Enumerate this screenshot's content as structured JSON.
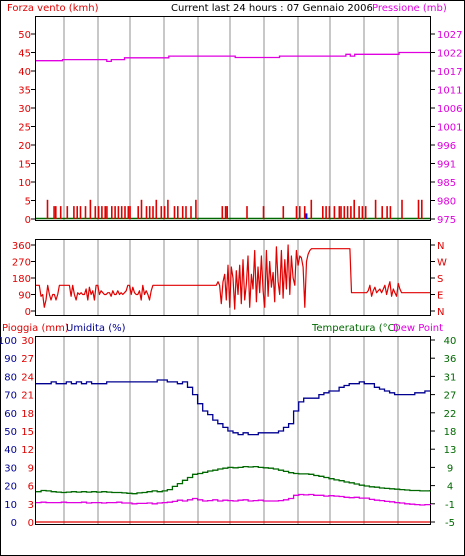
{
  "title": "Current last 24 hours : 07 Gennaio 2006",
  "colors": {
    "red": "#e00000",
    "magenta": "#e000e0",
    "navy": "#000090",
    "green": "#006800",
    "blue": "#0000ff",
    "grid": "#c8c8c8"
  },
  "chart_data": [
    {
      "type": "line",
      "id": "wind-pressure",
      "left_label": "Forza vento (kmh)",
      "right_label": "Pressione (mb)",
      "left_ticks": [
        "50",
        "45",
        "40",
        "35",
        "30",
        "25",
        "20",
        "15",
        "10",
        "5",
        "0"
      ],
      "right_ticks": [
        "1027",
        "1022",
        "1017",
        "1011",
        "1006",
        "1001",
        "996",
        "991",
        "985",
        "980",
        "975"
      ],
      "left_ylim": [
        0,
        50
      ],
      "right_ylim": [
        975,
        1027
      ],
      "series": [
        {
          "axis": "right",
          "color": "magenta",
          "values": [
            1019.5,
            1019.5,
            1019.5,
            1019.5,
            1019.5,
            1019.5,
            1019.8,
            1019.8,
            1019.8,
            1019.8,
            1019.8,
            1019.8,
            1019.8,
            1019.8,
            1019.8,
            1019.8,
            1019.3,
            1019.8,
            1019.8,
            1019.8,
            1020.3,
            1020.3,
            1020.3,
            1020.3,
            1020.3,
            1020.3,
            1020.3,
            1020.3,
            1020.3,
            1020.3,
            1020.8,
            1020.8,
            1020.8,
            1020.8,
            1020.8,
            1020.8,
            1020.8,
            1020.8,
            1020.8,
            1020.8,
            1020.8,
            1020.8,
            1020.8,
            1020.8,
            1020.8,
            1020.4,
            1020.4,
            1020.4,
            1020.4,
            1020.4,
            1020.4,
            1020.4,
            1020.4,
            1020.4,
            1020.4,
            1020.8,
            1020.8,
            1020.8,
            1020.8,
            1020.8,
            1020.8,
            1020.8,
            1020.8,
            1020.8,
            1020.8,
            1020.8,
            1020.8,
            1020.8,
            1020.8,
            1020.8,
            1021.3,
            1020.8,
            1021.3,
            1021.3,
            1021.3,
            1021.3,
            1021.3,
            1021.3,
            1021.3,
            1021.3,
            1021.3,
            1021.3,
            1021.8,
            1021.8,
            1021.8,
            1021.8,
            1021.8,
            1021.8,
            1021.8,
            1021.8
          ]
        }
      ],
      "wind_bars": [
        {
          "i": 7,
          "v": 5.2
        },
        {
          "i": 11,
          "v": 3.5
        },
        {
          "i": 12,
          "v": 3.5
        },
        {
          "i": 15,
          "v": 3.5
        },
        {
          "i": 19,
          "v": 3.5
        },
        {
          "i": 23,
          "v": 3.5
        },
        {
          "i": 25,
          "v": 3.5
        },
        {
          "i": 27,
          "v": 3.5
        },
        {
          "i": 30,
          "v": 3.5
        },
        {
          "i": 33,
          "v": 5.2
        },
        {
          "i": 36,
          "v": 3.5
        },
        {
          "i": 38,
          "v": 3.5
        },
        {
          "i": 40,
          "v": 3.5
        },
        {
          "i": 42,
          "v": 3.5
        },
        {
          "i": 43,
          "v": 3.5
        },
        {
          "i": 46,
          "v": 3.5
        },
        {
          "i": 48,
          "v": 3.5
        },
        {
          "i": 50,
          "v": 3.5
        },
        {
          "i": 52,
          "v": 3.5
        },
        {
          "i": 54,
          "v": 3.5
        },
        {
          "i": 56,
          "v": 3.5
        },
        {
          "i": 57,
          "v": 3.5
        },
        {
          "i": 62,
          "v": 3.5
        },
        {
          "i": 64,
          "v": 5.2
        },
        {
          "i": 67,
          "v": 3.5
        },
        {
          "i": 69,
          "v": 3.5
        },
        {
          "i": 71,
          "v": 3.5
        },
        {
          "i": 73,
          "v": 5.2
        },
        {
          "i": 76,
          "v": 3.5
        },
        {
          "i": 78,
          "v": 3.5
        },
        {
          "i": 80,
          "v": 5.2
        },
        {
          "i": 84,
          "v": 3.5
        },
        {
          "i": 86,
          "v": 3.5
        },
        {
          "i": 89,
          "v": 3.5
        },
        {
          "i": 91,
          "v": 3.5
        },
        {
          "i": 94,
          "v": 3.5
        },
        {
          "i": 97,
          "v": 5.2
        },
        {
          "i": 113,
          "v": 3.5
        },
        {
          "i": 115,
          "v": 3.5
        },
        {
          "i": 116,
          "v": 3.5
        },
        {
          "i": 128,
          "v": 3.5
        },
        {
          "i": 138,
          "v": 3.5
        },
        {
          "i": 150,
          "v": 3.5
        },
        {
          "i": 158,
          "v": 3.5
        },
        {
          "i": 160,
          "v": 3.5
        },
        {
          "i": 163,
          "v": 3.5
        },
        {
          "i": 167,
          "v": 5.2
        },
        {
          "i": 174,
          "v": 3.5
        },
        {
          "i": 176,
          "v": 3.5
        },
        {
          "i": 178,
          "v": 3.5
        },
        {
          "i": 181,
          "v": 3.5
        },
        {
          "i": 184,
          "v": 3.5
        },
        {
          "i": 185,
          "v": 3.5
        },
        {
          "i": 187,
          "v": 3.5
        },
        {
          "i": 189,
          "v": 3.5
        },
        {
          "i": 191,
          "v": 3.5
        },
        {
          "i": 193,
          "v": 5.2
        },
        {
          "i": 196,
          "v": 3.5
        },
        {
          "i": 198,
          "v": 3.5
        },
        {
          "i": 200,
          "v": 3.5
        },
        {
          "i": 206,
          "v": 5.2
        },
        {
          "i": 210,
          "v": 3.5
        },
        {
          "i": 213,
          "v": 3.5
        },
        {
          "i": 215,
          "v": 3.5
        },
        {
          "i": 222,
          "v": 5.2
        },
        {
          "i": 232,
          "v": 5.2
        },
        {
          "i": 234,
          "v": 5.2
        }
      ],
      "gust_bar": {
        "i": 164,
        "v": 1.5
      }
    },
    {
      "type": "line",
      "id": "wind-direction",
      "left_ticks": [
        "360",
        "270",
        "180",
        "90",
        "0"
      ],
      "right_ticks": [
        "N",
        "W",
        "S",
        "E",
        "N"
      ],
      "ylim": [
        0,
        360
      ],
      "series": [
        {
          "color": "red",
          "values": [
            140,
            140,
            140,
            80,
            90,
            20,
            60,
            140,
            90,
            60,
            90,
            90,
            60,
            90,
            140,
            140,
            140,
            140,
            140,
            140,
            140,
            80,
            140,
            90,
            60,
            100,
            90,
            100,
            90,
            90,
            120,
            60,
            130,
            90,
            110,
            60,
            140,
            140,
            90,
            110,
            100,
            90,
            90,
            100,
            100,
            80,
            110,
            90,
            90,
            110,
            90,
            100,
            90,
            100,
            110,
            140,
            140,
            90,
            130,
            100,
            90,
            90,
            110,
            60,
            140,
            90,
            110,
            90,
            60,
            110,
            140,
            140,
            140,
            140,
            140,
            140,
            140,
            140,
            140,
            140,
            140,
            140,
            140,
            140,
            140,
            140,
            140,
            140,
            140,
            140,
            140,
            140,
            140,
            140,
            140,
            140,
            140,
            140,
            140,
            140,
            140,
            140,
            140,
            140,
            140,
            140,
            140,
            140,
            140,
            160,
            140,
            40,
            160,
            200,
            60,
            250,
            20,
            240,
            180,
            10,
            220,
            90,
            250,
            40,
            280,
            60,
            150,
            300,
            20,
            200,
            120,
            330,
            50,
            240,
            100,
            300,
            110,
            20,
            330,
            80,
            270,
            130,
            210,
            50,
            350,
            160,
            90,
            330,
            70,
            280,
            120,
            360,
            90,
            300,
            180,
            140,
            330,
            250,
            300,
            290,
            240,
            20,
            270,
            310,
            330,
            340,
            340,
            340,
            340,
            340,
            340,
            340,
            340,
            340,
            340,
            340,
            340,
            340,
            340,
            340,
            340,
            340,
            340,
            340,
            340,
            340,
            340,
            340,
            340,
            100,
            100,
            100,
            100,
            100,
            100,
            100,
            100,
            100,
            100,
            110,
            140,
            80,
            110,
            130,
            100,
            110,
            120,
            100,
            120,
            140,
            90,
            130,
            160,
            80,
            120,
            100,
            80,
            150,
            120,
            100,
            100,
            100,
            100,
            100,
            100,
            100,
            100,
            100,
            100,
            100,
            100,
            100,
            100,
            100,
            100,
            100,
            100
          ]
        }
      ]
    },
    {
      "type": "line",
      "id": "rain-humidity-temperature",
      "left_label_1": "Pioggia (mm)",
      "left_label_2": "Umidita (%)",
      "right_label_1": "Temperatura (°C)",
      "right_label_2": "Dew Point",
      "rain_ticks": [
        "30",
        "27",
        "24",
        "21",
        "18",
        "15",
        "12",
        "9",
        "6",
        "3",
        "0"
      ],
      "humidity_ticks": [
        "100",
        "90",
        "80",
        "70",
        "60",
        "50",
        "40",
        "30",
        "20",
        "10",
        "0"
      ],
      "temp_ticks": [
        "40",
        "36",
        "31",
        "27",
        "22",
        "18",
        "13",
        "9",
        "4",
        "-1",
        "-5"
      ],
      "humidity_ylim": [
        0,
        100
      ],
      "temp_ylim": [
        -5,
        40
      ],
      "rain_ylim": [
        0,
        30
      ],
      "series": [
        {
          "name": "Umidita (%)",
          "axis": "humidity",
          "color": "navy",
          "values": [
            76,
            76,
            76,
            77,
            76,
            76,
            77,
            76,
            77,
            76,
            77,
            76,
            76,
            76,
            77,
            77,
            77,
            77,
            77,
            77,
            77,
            77,
            77,
            77,
            78,
            78,
            77,
            77,
            76,
            77,
            74,
            70,
            65,
            61,
            59,
            56,
            54,
            52,
            50,
            49,
            48,
            49,
            48,
            48,
            49,
            49,
            49,
            49,
            50,
            52,
            54,
            61,
            66,
            68,
            68,
            68,
            70,
            71,
            72,
            72,
            74,
            75,
            76,
            76,
            77,
            76,
            76,
            74,
            73,
            72,
            71,
            70,
            70,
            70,
            70,
            71,
            71,
            72,
            72
          ]
        },
        {
          "name": "Temperatura (°C)",
          "axis": "temp",
          "color": "green",
          "values": [
            2.5,
            2.8,
            2.7,
            2.5,
            2.4,
            2.3,
            2.4,
            2.5,
            2.4,
            2.5,
            2.4,
            2.5,
            2.4,
            2.5,
            2.4,
            2.3,
            2.3,
            2.2,
            2.1,
            2.0,
            2.2,
            2.3,
            2.5,
            2.7,
            2.5,
            2.7,
            3.0,
            3.8,
            4.5,
            5.3,
            6.0,
            6.8,
            7.0,
            7.3,
            7.6,
            7.8,
            8.1,
            8.3,
            8.5,
            8.4,
            8.5,
            8.7,
            8.6,
            8.7,
            8.5,
            8.4,
            8.3,
            8.1,
            7.8,
            7.5,
            7.2,
            7.0,
            6.9,
            6.9,
            6.8,
            6.5,
            6.3,
            6.0,
            5.7,
            5.4,
            5.2,
            4.9,
            4.7,
            4.4,
            4.1,
            3.9,
            3.7,
            3.6,
            3.4,
            3.3,
            3.2,
            3.1,
            3.0,
            2.9,
            2.8,
            2.8,
            2.7,
            2.7,
            2.9
          ]
        },
        {
          "name": "Dew Point",
          "axis": "temp",
          "color": "magenta",
          "values": [
            -0.2,
            -0.1,
            -0.2,
            -0.2,
            -0.2,
            -0.1,
            -0.2,
            -0.2,
            -0.2,
            -0.1,
            -0.3,
            -0.2,
            -0.2,
            -0.3,
            -0.2,
            -0.2,
            -0.1,
            -0.3,
            -0.3,
            -0.5,
            -0.4,
            -0.4,
            -0.3,
            -0.5,
            -0.3,
            -0.2,
            -0.1,
            0.1,
            0.4,
            0.2,
            0.5,
            0.8,
            0.5,
            0.2,
            0.3,
            0.5,
            0.2,
            0.4,
            0.3,
            0.2,
            0.4,
            0.5,
            0.2,
            0.3,
            0.4,
            0.2,
            0.2,
            0.2,
            0.3,
            0.5,
            0.8,
            1.6,
            1.8,
            1.7,
            1.8,
            1.6,
            1.6,
            1.4,
            1.5,
            1.4,
            1.3,
            1.1,
            1.0,
            1.1,
            0.9,
            0.9,
            0.6,
            0.4,
            0.3,
            0.1,
            0.0,
            -0.2,
            -0.3,
            -0.5,
            -0.6,
            -0.7,
            -0.8,
            -0.7,
            -0.8
          ]
        },
        {
          "name": "Pioggia (mm)",
          "axis": "rain",
          "color": "red",
          "values": [
            0,
            0
          ]
        }
      ]
    }
  ]
}
